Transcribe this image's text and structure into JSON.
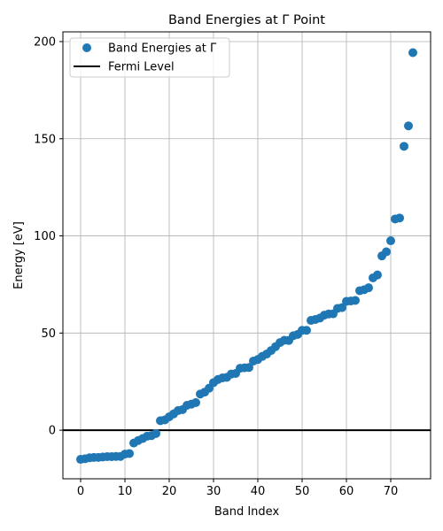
{
  "chart_data": {
    "type": "scatter",
    "title": "Band Energies at Γ Point",
    "xlabel": "Band Index",
    "ylabel": "Energy [eV]",
    "xlim": [
      -4,
      79
    ],
    "ylim": [
      -25,
      205
    ],
    "xticks": [
      0,
      10,
      20,
      30,
      40,
      50,
      60,
      70
    ],
    "yticks": [
      0,
      50,
      100,
      150,
      200
    ],
    "grid": true,
    "legend_position": "upper-left",
    "series": [
      {
        "name": "Band Energies at Γ",
        "marker": "circle",
        "color": "#1f77b4",
        "x": [
          0,
          1,
          2,
          3,
          4,
          5,
          6,
          7,
          8,
          9,
          10,
          11,
          12,
          13,
          14,
          15,
          16,
          17,
          18,
          19,
          20,
          21,
          22,
          23,
          24,
          25,
          26,
          27,
          28,
          29,
          30,
          31,
          32,
          33,
          34,
          35,
          36,
          37,
          38,
          39,
          40,
          41,
          42,
          43,
          44,
          45,
          46,
          47,
          48,
          49,
          50,
          51,
          52,
          53,
          54,
          55,
          56,
          57,
          58,
          59,
          60,
          61,
          62,
          63,
          64,
          65,
          66,
          67,
          68,
          69,
          70,
          71,
          72,
          73,
          74,
          75
        ],
        "values": [
          -15.0,
          -14.7,
          -14.2,
          -14.0,
          -14.0,
          -13.8,
          -13.6,
          -13.6,
          -13.5,
          -13.5,
          -12.3,
          -12.0,
          -6.6,
          -5.3,
          -4.3,
          -3.1,
          -2.8,
          -1.7,
          4.9,
          5.3,
          6.9,
          8.4,
          10.1,
          10.6,
          12.8,
          13.4,
          14.2,
          18.6,
          19.6,
          21.6,
          24.5,
          26.1,
          26.9,
          27.2,
          28.9,
          29.2,
          31.9,
          32.1,
          32.3,
          35.6,
          36.4,
          38.0,
          39.2,
          41.0,
          43.0,
          45.1,
          46.3,
          46.2,
          48.6,
          49.3,
          51.4,
          51.4,
          56.5,
          57.0,
          57.7,
          59.2,
          59.8,
          59.9,
          62.7,
          63.1,
          66.3,
          66.5,
          66.8,
          71.8,
          72.3,
          73.3,
          78.4,
          79.9,
          89.7,
          91.8,
          97.5,
          108.7,
          109.2,
          146.1,
          156.6,
          194.3
        ]
      },
      {
        "name": "Fermi Level",
        "type": "hline",
        "y": 0,
        "color": "#000000"
      }
    ]
  }
}
